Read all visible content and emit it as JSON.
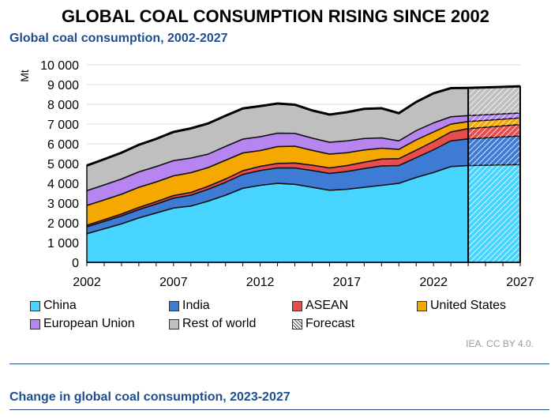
{
  "title": "GLOBAL COAL CONSUMPTION RISING SINCE 2002",
  "subtitle": "Global coal consumption, 2002-2027",
  "next_subtitle": "Change in global coal consumption, 2023-2027",
  "source": "IEA. CC BY 4.0.",
  "chart_data": {
    "type": "area",
    "stacked": true,
    "title": "Global coal consumption, 2002-2027",
    "ylabel": "Mt",
    "ylim": [
      0,
      10000
    ],
    "yticks": [
      "0",
      "1 000",
      "2 000",
      "3 000",
      "4 000",
      "5 000",
      "6 000",
      "7 000",
      "8 000",
      "9 000",
      "10 000"
    ],
    "xticks": [
      "2002",
      "2007",
      "2012",
      "2017",
      "2022",
      "2027"
    ],
    "xlim": [
      2002,
      2027
    ],
    "forecast_from": 2024,
    "grid": "horizontal",
    "legend_placement": "bottom",
    "x": [
      2002,
      2003,
      2004,
      2005,
      2006,
      2007,
      2008,
      2009,
      2010,
      2011,
      2012,
      2013,
      2014,
      2015,
      2016,
      2017,
      2018,
      2019,
      2020,
      2021,
      2022,
      2023,
      2024,
      2027
    ],
    "series": [
      {
        "name": "China",
        "color": "#47d4ff",
        "values": [
          1450,
          1700,
          1950,
          2250,
          2500,
          2750,
          2850,
          3100,
          3400,
          3750,
          3900,
          4000,
          3950,
          3800,
          3650,
          3700,
          3800,
          3900,
          4000,
          4300,
          4550,
          4850,
          4900,
          4950
        ]
      },
      {
        "name": "India",
        "color": "#3d7bd4",
        "values": [
          350,
          370,
          400,
          420,
          450,
          500,
          550,
          600,
          650,
          700,
          750,
          780,
          830,
          850,
          850,
          900,
          950,
          980,
          900,
          1000,
          1150,
          1300,
          1350,
          1450
        ]
      },
      {
        "name": "ASEAN",
        "color": "#e84c4c",
        "values": [
          80,
          90,
          100,
          110,
          120,
          130,
          140,
          150,
          170,
          190,
          210,
          230,
          250,
          270,
          280,
          300,
          320,
          350,
          350,
          380,
          420,
          450,
          520,
          580
        ]
      },
      {
        "name": "United States",
        "color": "#f5a800",
        "values": [
          1000,
          1000,
          1000,
          1020,
          1000,
          1000,
          1000,
          950,
          950,
          900,
          800,
          850,
          850,
          750,
          700,
          650,
          620,
          550,
          470,
          520,
          480,
          400,
          360,
          330
        ]
      },
      {
        "name": "European Union",
        "color": "#b785f0",
        "values": [
          750,
          760,
          770,
          780,
          780,
          770,
          740,
          680,
          700,
          700,
          700,
          680,
          650,
          620,
          600,
          600,
          580,
          520,
          430,
          470,
          460,
          370,
          300,
          250
        ]
      },
      {
        "name": "Rest of world",
        "color": "#bfbfbf",
        "values": [
          1270,
          1300,
          1330,
          1370,
          1400,
          1450,
          1500,
          1550,
          1550,
          1550,
          1550,
          1500,
          1450,
          1400,
          1400,
          1450,
          1500,
          1500,
          1400,
          1450,
          1500,
          1450,
          1400,
          1350
        ]
      }
    ],
    "forecast_label": "Forecast"
  }
}
